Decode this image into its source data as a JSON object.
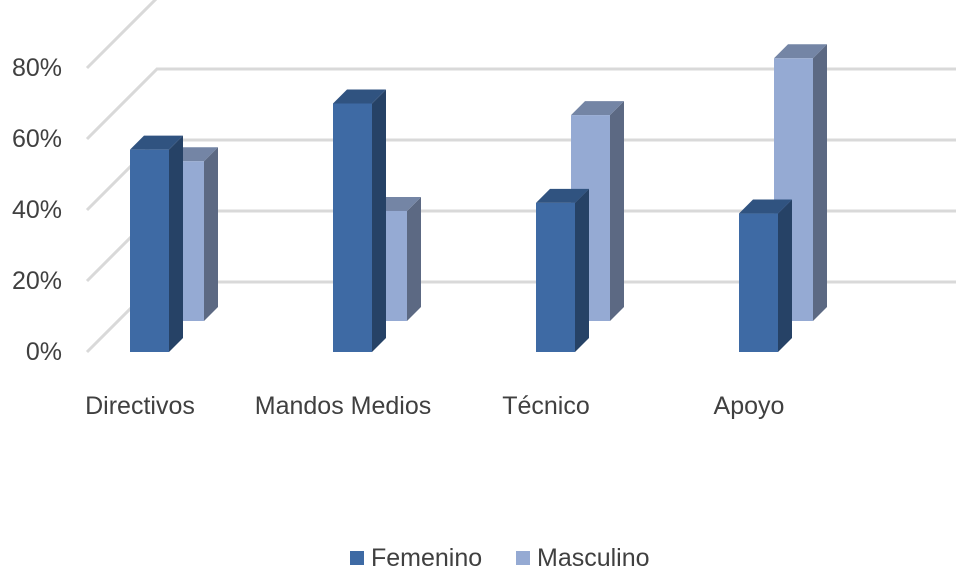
{
  "chart_data": {
    "type": "bar",
    "title": "",
    "xlabel": "",
    "ylabel": "",
    "categories": [
      "Directivos",
      "Mandos Medios",
      "Técnico",
      "Apoyo"
    ],
    "series": [
      {
        "name": "Femenino",
        "values": [
          57,
          70,
          42,
          39
        ],
        "color": "#3E6AA4"
      },
      {
        "name": "Masculino",
        "values": [
          45,
          31,
          58,
          74
        ],
        "color": "#95AAD3"
      }
    ],
    "ylim": [
      0,
      80
    ],
    "yticks": [
      "0%",
      "20%",
      "40%",
      "60%",
      "80%"
    ],
    "grid": true,
    "legend_position": "bottom",
    "three_d": true
  }
}
